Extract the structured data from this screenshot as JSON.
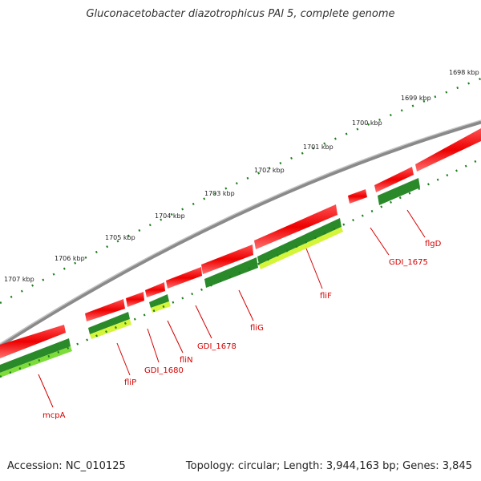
{
  "title": "Gluconacetobacter diazotrophicus PAl 5, complete genome",
  "footer": {
    "accession": "Accession: NC_010125",
    "summary": "Topology: circular; Length: 3,944,163 bp; Genes: 3,845"
  },
  "tick_labels": [
    "1698 kbp",
    "1699 kbp",
    "1700 kbp",
    "1701 kbp",
    "1702 kbp",
    "1703 kbp",
    "1704 kbp",
    "1705 kbp",
    "1706 kbp",
    "1707 kbp"
  ],
  "genes": [
    {
      "name": "flgD",
      "strand": "-"
    },
    {
      "name": "GDI_1675",
      "strand": "-"
    },
    {
      "name": "fliF",
      "strand": "-"
    },
    {
      "name": "fliG",
      "strand": "-"
    },
    {
      "name": "GDI_1678",
      "strand": "-"
    },
    {
      "name": "fliN",
      "strand": "-"
    },
    {
      "name": "GDI_1680",
      "strand": "-"
    },
    {
      "name": "fliP",
      "strand": "-"
    },
    {
      "name": "mcpA",
      "strand": "-"
    }
  ],
  "colors": {
    "backbone": "#7f7f7f",
    "gene_forward": "#ff1a1a",
    "track_green_dark": "#2a8a2a",
    "track_green_light": "#7edc3a",
    "track_yellow_green": "#d4f53a",
    "tick_dots": "#1f7f1f",
    "label_red": "#d40000"
  }
}
